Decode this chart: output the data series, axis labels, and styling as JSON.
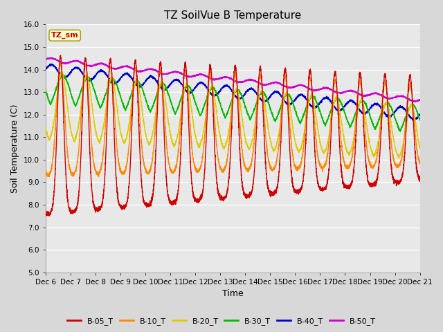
{
  "title": "TZ SoilVue B Temperature",
  "xlabel": "Time",
  "ylabel": "Soil Temperature (C)",
  "ylim": [
    5.0,
    16.0
  ],
  "yticks": [
    5.0,
    6.0,
    7.0,
    8.0,
    9.0,
    10.0,
    11.0,
    12.0,
    13.0,
    14.0,
    15.0,
    16.0
  ],
  "xlim_days": [
    6,
    21
  ],
  "xtick_labels": [
    "Dec 6",
    "Dec 7",
    "Dec 8",
    "Dec 9",
    "Dec 10",
    "Dec 11",
    "Dec 12",
    "Dec 13",
    "Dec 14",
    "Dec 15",
    "Dec 16",
    "Dec 17",
    "Dec 18",
    "Dec 19",
    "Dec 20",
    "Dec 21"
  ],
  "series_colors": {
    "B-05_T": "#cc0000",
    "B-10_T": "#ff8800",
    "B-20_T": "#ddcc00",
    "B-30_T": "#00bb00",
    "B-40_T": "#0000cc",
    "B-50_T": "#cc00cc"
  },
  "legend_label": "TZ_sm",
  "legend_box_color": "#ffffcc",
  "legend_text_color": "#cc0000",
  "background_color": "#d8d8d8",
  "plot_bg_color": "#e8e8e8",
  "grid_color": "#ffffff",
  "title_fontsize": 11,
  "label_fontsize": 9,
  "tick_fontsize": 7.5
}
